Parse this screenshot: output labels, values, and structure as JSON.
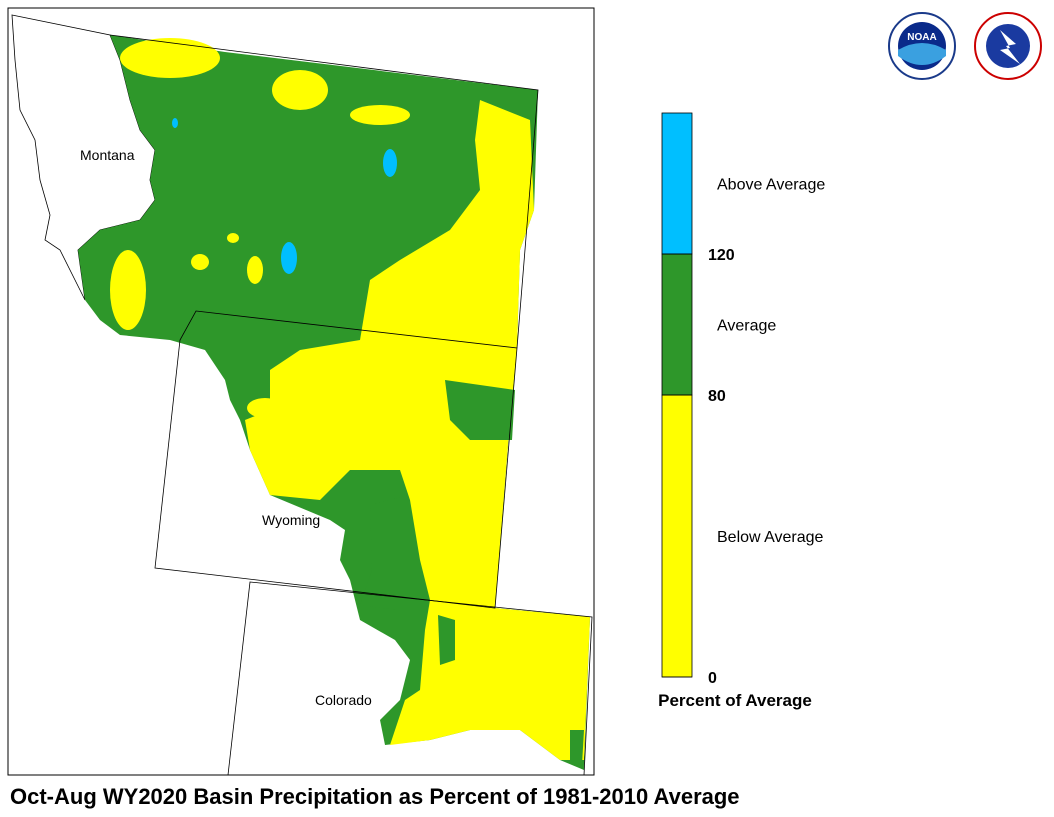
{
  "map": {
    "title": "Oct-Aug WY2020 Basin Precipitation as Percent of 1981-2010 Average",
    "states": [
      "Montana",
      "Wyoming",
      "Colorado"
    ]
  },
  "legend": {
    "title": "Percent of Average",
    "lim": [
      0,
      160
    ],
    "ticks": [
      0,
      80,
      120
    ],
    "classes": [
      {
        "label": "Below Average",
        "color": "#ffff00"
      },
      {
        "label": "Average",
        "color": "#2e972a"
      },
      {
        "label": "Above Average",
        "color": "#00bfff"
      }
    ]
  },
  "logos": {
    "noaa": "NOAA"
  }
}
